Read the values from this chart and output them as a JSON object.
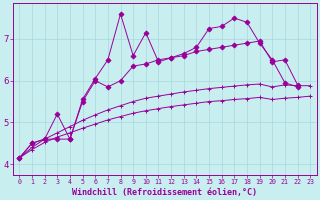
{
  "xlabel": "Windchill (Refroidissement éolien,°C)",
  "bg_color": "#c8eef0",
  "grid_color": "#a8d8dc",
  "line_color": "#990099",
  "xlim": [
    -0.5,
    23.5
  ],
  "ylim": [
    3.75,
    7.85
  ],
  "xticks": [
    0,
    1,
    2,
    3,
    4,
    5,
    6,
    7,
    8,
    9,
    10,
    11,
    12,
    13,
    14,
    15,
    16,
    17,
    18,
    19,
    20,
    21,
    22,
    23
  ],
  "yticks": [
    4,
    5,
    6,
    7
  ],
  "series": [
    {
      "x": [
        0,
        1,
        2,
        3,
        4,
        5,
        6,
        7,
        8,
        9,
        10,
        11,
        12,
        13,
        14,
        15,
        16,
        17,
        18,
        19,
        20,
        21,
        22
      ],
      "y": [
        4.15,
        4.5,
        4.6,
        5.2,
        4.6,
        5.55,
        6.05,
        6.5,
        7.6,
        6.6,
        7.15,
        6.45,
        6.55,
        6.65,
        6.8,
        7.25,
        7.3,
        7.5,
        7.4,
        6.9,
        6.5,
        5.95,
        5.85
      ],
      "marker": "D",
      "ms": 2.5
    },
    {
      "x": [
        0,
        1,
        2,
        3,
        4,
        5,
        6,
        7,
        8,
        9,
        10,
        11,
        12,
        13,
        14,
        15,
        16,
        17,
        18,
        19,
        20,
        21,
        22
      ],
      "y": [
        4.15,
        4.5,
        4.6,
        4.6,
        4.6,
        5.5,
        6.0,
        5.85,
        6.0,
        6.35,
        6.4,
        6.5,
        6.55,
        6.6,
        6.7,
        6.75,
        6.8,
        6.85,
        6.9,
        6.95,
        6.45,
        6.5,
        5.9
      ],
      "marker": "D",
      "ms": 2.5
    },
    {
      "x": [
        0,
        1,
        2,
        3,
        4,
        5,
        6,
        7,
        8,
        9,
        10,
        11,
        12,
        13,
        14,
        15,
        16,
        17,
        18,
        19,
        20,
        21,
        22,
        23
      ],
      "y": [
        4.15,
        4.4,
        4.6,
        4.75,
        4.9,
        5.05,
        5.18,
        5.3,
        5.4,
        5.5,
        5.58,
        5.63,
        5.68,
        5.73,
        5.77,
        5.81,
        5.84,
        5.87,
        5.9,
        5.92,
        5.85,
        5.9,
        5.88,
        5.88
      ],
      "marker": "+",
      "ms": 3.5
    },
    {
      "x": [
        0,
        1,
        2,
        3,
        4,
        5,
        6,
        7,
        8,
        9,
        10,
        11,
        12,
        13,
        14,
        15,
        16,
        17,
        18,
        19,
        20,
        21,
        22,
        23
      ],
      "y": [
        4.15,
        4.35,
        4.52,
        4.65,
        4.75,
        4.86,
        4.96,
        5.06,
        5.14,
        5.22,
        5.28,
        5.33,
        5.38,
        5.42,
        5.46,
        5.5,
        5.52,
        5.55,
        5.57,
        5.6,
        5.55,
        5.58,
        5.6,
        5.63
      ],
      "marker": "+",
      "ms": 3.5
    }
  ]
}
